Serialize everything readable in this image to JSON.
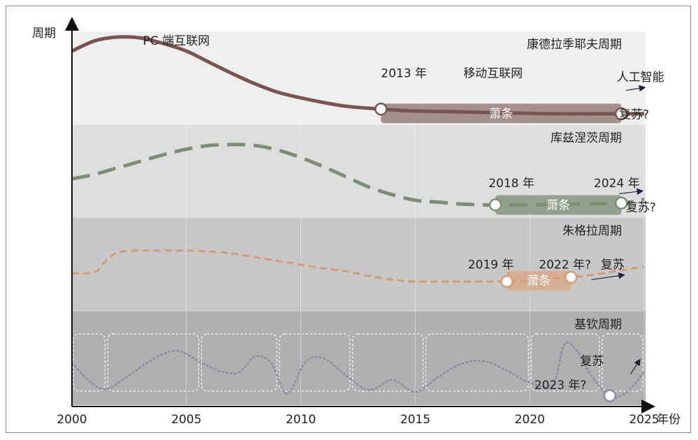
{
  "chart_data": {
    "type": "line",
    "ylabel": "周期",
    "xlabel": "年份",
    "x_ticks": [
      "2000",
      "2005",
      "2010",
      "2015",
      "2020",
      "2025"
    ],
    "xlim": [
      2000,
      2025
    ],
    "bands": [
      {
        "name": "康德拉季耶夫周期",
        "color": "#efefef",
        "line_color": "#7a5450",
        "style": "solid",
        "series": {
          "x": [
            2000,
            2001,
            2002,
            2003,
            2004,
            2005,
            2006,
            2007,
            2008,
            2009,
            2010,
            2011,
            2012,
            2013.5,
            2015,
            2017,
            2019,
            2021,
            2023,
            2024,
            2025
          ],
          "y": [
            0.79,
            0.9,
            0.94,
            0.93,
            0.87,
            0.79,
            0.67,
            0.55,
            0.44,
            0.35,
            0.29,
            0.24,
            0.2,
            0.17,
            0.15,
            0.14,
            0.13,
            0.12,
            0.12,
            0.12,
            0.12
          ]
        },
        "annotations": [
          {
            "text": "PC 端互联网",
            "x": 2003.1,
            "y": 0.86
          },
          {
            "text": "2013 年",
            "x": 2013.5,
            "y": 0.51
          },
          {
            "text": "移动互联网",
            "x": 2017.1,
            "y": 0.51
          },
          {
            "text": "人工智能",
            "x": 2023.8,
            "y": 0.47
          },
          {
            "text": "复苏?",
            "x": 2023.9,
            "y": 0.07
          }
        ],
        "period": {
          "text": "萧条",
          "from": 2013.5,
          "to": 2024.0
        },
        "markers": [
          2013.5,
          2024.0
        ],
        "arrow": {
          "from": [
            2024.2,
            0.37
          ],
          "to": [
            2025.0,
            0.4
          ]
        }
      },
      {
        "name": "库兹涅茨周期",
        "color": "#dedede",
        "line_color": "#7c8f74",
        "style": "dashed",
        "series": {
          "x": [
            2000,
            2001,
            2002,
            2003,
            2004,
            2005,
            2006,
            2007,
            2008,
            2009,
            2010,
            2011,
            2012,
            2013,
            2014,
            2015,
            2016,
            2017,
            2018,
            2018.5,
            2020,
            2022,
            2024,
            2025
          ],
          "y": [
            0.42,
            0.47,
            0.54,
            0.61,
            0.68,
            0.74,
            0.78,
            0.79,
            0.78,
            0.73,
            0.65,
            0.55,
            0.44,
            0.33,
            0.25,
            0.19,
            0.17,
            0.15,
            0.14,
            0.14,
            0.14,
            0.15,
            0.16,
            0.2
          ]
        },
        "annotations": [
          {
            "text": "2018 年",
            "x": 2018.2,
            "y": 0.33
          },
          {
            "text": "2024 年",
            "x": 2022.8,
            "y": 0.33
          },
          {
            "text": "复苏?",
            "x": 2024.2,
            "y": 0.07
          }
        ],
        "period": {
          "text": "萧条",
          "from": 2018.5,
          "to": 2024.0
        },
        "markers": [
          2018.5,
          2024.0
        ],
        "arrow": {
          "from": [
            2023.9,
            0.26
          ],
          "to": [
            2024.9,
            0.29
          ]
        }
      },
      {
        "name": "朱格拉周期",
        "color": "#c8c8c8",
        "line_color": "#d69a74",
        "style": "dashed-small",
        "series": {
          "x": [
            2000,
            2001,
            2001.4,
            2002,
            2003,
            2004,
            2005,
            2006,
            2007,
            2008,
            2009,
            2010,
            2011,
            2012,
            2013,
            2014,
            2015,
            2016,
            2017,
            2018,
            2019,
            2020,
            2021,
            2022,
            2023,
            2024,
            2025
          ],
          "y": [
            0.41,
            0.42,
            0.52,
            0.63,
            0.65,
            0.65,
            0.65,
            0.64,
            0.62,
            0.58,
            0.54,
            0.5,
            0.46,
            0.43,
            0.38,
            0.34,
            0.32,
            0.32,
            0.32,
            0.32,
            0.32,
            0.33,
            0.35,
            0.37,
            0.4,
            0.44,
            0.48
          ]
        },
        "annotations": [
          {
            "text": "2019 年",
            "x": 2017.3,
            "y": 0.46
          },
          {
            "text": "2022 年?",
            "x": 2020.4,
            "y": 0.46
          },
          {
            "text": "复苏",
            "x": 2023.1,
            "y": 0.46
          }
        ],
        "period": {
          "text": "萧条",
          "from": 2019.0,
          "to": 2021.8
        },
        "markers": [
          2019.0,
          2021.8
        ],
        "arrow": {
          "from": [
            2022.7,
            0.34
          ],
          "to": [
            2024.1,
            0.39
          ]
        }
      },
      {
        "name": "基钦周期",
        "color": "#b0b0b0",
        "line_color": "#8c8aa6",
        "style": "dotted",
        "series": {
          "x": [
            2000,
            2000.8,
            2001.5,
            2002.5,
            2003.6,
            2004.6,
            2005.6,
            2006.5,
            2007.3,
            2008,
            2008.7,
            2009.4,
            2010.2,
            2011,
            2012,
            2013,
            2014,
            2015,
            2016,
            2017,
            2018,
            2019,
            2020,
            2021,
            2021.5,
            2022,
            2022.7,
            2023.5,
            2024.2,
            2025
          ],
          "y": [
            0.45,
            0.25,
            0.17,
            0.32,
            0.5,
            0.58,
            0.46,
            0.36,
            0.35,
            0.52,
            0.45,
            0.12,
            0.46,
            0.5,
            0.31,
            0.16,
            0.27,
            0.14,
            0.3,
            0.44,
            0.47,
            0.37,
            0.24,
            0.22,
            0.64,
            0.6,
            0.31,
            0.1,
            0.13,
            0.35
          ]
        },
        "annotations": [
          {
            "text": "复苏",
            "x": 2022.2,
            "y": 0.43
          },
          {
            "text": "2023 年?",
            "x": 2020.2,
            "y": 0.17
          }
        ],
        "cycle_boundaries": [
          2000,
          2001.5,
          2005.6,
          2009.0,
          2012.2,
          2015.4,
          2020.0,
          2023.1,
          2025.0
        ],
        "markers": [
          2023.5
        ],
        "arrow": {
          "from": [
            2024.4,
            0.33
          ],
          "to": [
            2024.8,
            0.48
          ]
        }
      }
    ]
  }
}
